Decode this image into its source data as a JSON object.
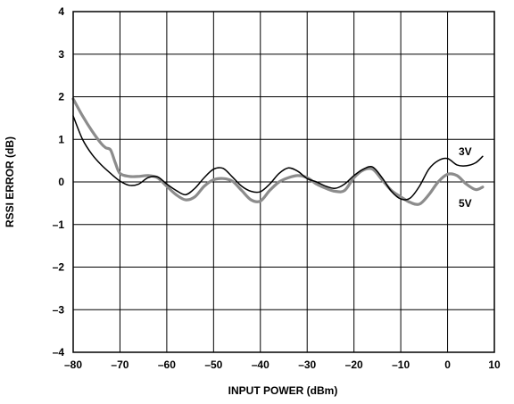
{
  "chart_data": {
    "type": "line",
    "xlabel": "INPUT POWER (dBm)",
    "ylabel": "RSSI ERROR (dB)",
    "xlim": [
      -80,
      10
    ],
    "ylim": [
      -4,
      4
    ],
    "x_ticks": [
      -80,
      -70,
      -60,
      -50,
      -40,
      -30,
      -20,
      -10,
      0,
      10
    ],
    "y_ticks": [
      -4,
      -3,
      -2,
      -1,
      0,
      1,
      2,
      3,
      4
    ],
    "x_tick_labels": [
      "–80",
      "–70",
      "–60",
      "–50",
      "–40",
      "–30",
      "–20",
      "–10",
      "0",
      "10"
    ],
    "y_tick_labels": [
      "–4",
      "–3",
      "–2",
      "–1",
      "0",
      "1",
      "2",
      "3",
      "4"
    ],
    "grid": true,
    "series": [
      {
        "name": "3V",
        "color": "#000000",
        "x": [
          -80,
          -78,
          -76,
          -74,
          -72,
          -70,
          -68,
          -66,
          -64,
          -62,
          -60,
          -58,
          -56,
          -54,
          -52,
          -50,
          -48,
          -46,
          -44,
          -42,
          -40,
          -38,
          -36,
          -34,
          -32,
          -30,
          -28,
          -26,
          -24,
          -22,
          -20,
          -18,
          -16,
          -14,
          -12,
          -10,
          -8,
          -6,
          -4,
          -2,
          0,
          2,
          4,
          6,
          7.5
        ],
        "values": [
          1.55,
          1.0,
          0.65,
          0.4,
          0.2,
          0.02,
          -0.08,
          -0.05,
          0.1,
          0.12,
          -0.05,
          -0.2,
          -0.3,
          -0.15,
          0.1,
          0.3,
          0.32,
          0.12,
          -0.1,
          -0.22,
          -0.23,
          -0.05,
          0.2,
          0.33,
          0.25,
          0.08,
          0.0,
          -0.1,
          -0.15,
          -0.05,
          0.15,
          0.3,
          0.35,
          0.1,
          -0.22,
          -0.4,
          -0.38,
          -0.1,
          0.3,
          0.5,
          0.55,
          0.4,
          0.38,
          0.45,
          0.6
        ]
      },
      {
        "name": "5V",
        "color": "#8c8c8c",
        "x": [
          -80,
          -78,
          -76,
          -74,
          -73,
          -72,
          -71,
          -70,
          -68,
          -66,
          -64,
          -62,
          -60,
          -58,
          -56,
          -54,
          -52,
          -50,
          -48,
          -46,
          -44,
          -42,
          -40,
          -38,
          -36,
          -34,
          -32,
          -30,
          -28,
          -26,
          -24,
          -22,
          -20,
          -18,
          -16,
          -14,
          -12,
          -10,
          -8,
          -6,
          -4,
          -2,
          0,
          2,
          4,
          6,
          7.5
        ],
        "values": [
          1.95,
          1.55,
          1.2,
          0.9,
          0.8,
          0.75,
          0.45,
          0.2,
          0.13,
          0.13,
          0.15,
          0.1,
          -0.1,
          -0.3,
          -0.42,
          -0.35,
          -0.1,
          0.05,
          0.08,
          0.02,
          -0.2,
          -0.42,
          -0.45,
          -0.2,
          0.0,
          0.1,
          0.15,
          0.1,
          -0.05,
          -0.15,
          -0.22,
          -0.2,
          0.1,
          0.28,
          0.3,
          0.05,
          -0.2,
          -0.35,
          -0.48,
          -0.52,
          -0.3,
          0.0,
          0.18,
          0.15,
          -0.05,
          -0.18,
          -0.12
        ]
      }
    ]
  }
}
